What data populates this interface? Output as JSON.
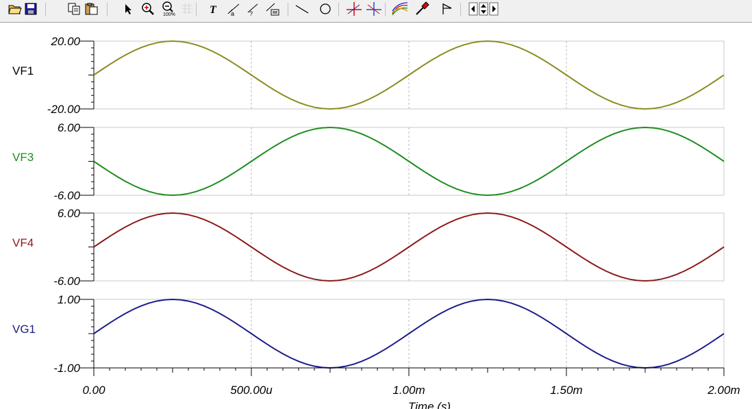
{
  "toolbar": {
    "buttons": [
      {
        "name": "open-file-icon",
        "label": "Open"
      },
      {
        "name": "save-file-icon",
        "label": "Save"
      },
      {
        "name": "copy-icon",
        "label": "Copy"
      },
      {
        "name": "paste-icon",
        "label": "Paste"
      },
      {
        "name": "pointer-icon",
        "label": "Select"
      },
      {
        "name": "zoom-in-icon",
        "label": "Zoom in"
      },
      {
        "name": "zoom-100-icon",
        "label": "Zoom 100%"
      },
      {
        "name": "grid-icon",
        "label": "Grid"
      },
      {
        "name": "text-tool-icon",
        "label": "Text"
      },
      {
        "name": "cursor-a-icon",
        "label": "Cursor A"
      },
      {
        "name": "cursor-b-icon",
        "label": "Cursor B"
      },
      {
        "name": "cursor-table-icon",
        "label": "Cursor table"
      },
      {
        "name": "line-tool-icon",
        "label": "Line"
      },
      {
        "name": "circle-tool-icon",
        "label": "Circle"
      },
      {
        "name": "crosshair-red-icon",
        "label": "Crosshair A"
      },
      {
        "name": "crosshair-blue-icon",
        "label": "Crosshair B"
      },
      {
        "name": "curves-icon",
        "label": "Curves"
      },
      {
        "name": "probe-icon",
        "label": "Probe"
      },
      {
        "name": "marker-icon",
        "label": "Marker"
      },
      {
        "name": "scroll-left-icon",
        "label": "Scroll left"
      },
      {
        "name": "scroll-updown-icon",
        "label": "Scroll up/down"
      },
      {
        "name": "scroll-right-icon",
        "label": "Scroll right"
      }
    ]
  },
  "chart_data": {
    "type": "line",
    "xlabel": "Time (s)",
    "x_range": [
      0,
      0.002
    ],
    "x_ticks": [
      {
        "value": 0,
        "label": "0.00"
      },
      {
        "value": 0.0005,
        "label": "500.00u"
      },
      {
        "value": 0.001,
        "label": "1.00m"
      },
      {
        "value": 0.0015,
        "label": "1.50m"
      },
      {
        "value": 0.002,
        "label": "2.00m"
      }
    ],
    "grid": "vertical dashed at major x ticks",
    "signal": {
      "frequency_hz": 1000,
      "samples": 81
    },
    "series": [
      {
        "name": "VF1",
        "color": "#8b8b1e",
        "amplitude": 20,
        "phase": "sine",
        "ylim": [
          -20,
          20
        ],
        "y_max_label": "20.00",
        "y_min_label": "-20.00"
      },
      {
        "name": "VF3",
        "color": "#1e8c1e",
        "amplitude": 6,
        "phase": "inverted sine",
        "ylim": [
          -6,
          6
        ],
        "y_max_label": "6.00",
        "y_min_label": "-6.00"
      },
      {
        "name": "VF4",
        "color": "#8b1a1a",
        "amplitude": 6,
        "phase": "sine",
        "ylim": [
          -6,
          6
        ],
        "y_max_label": "6.00",
        "y_min_label": "-6.00"
      },
      {
        "name": "VG1",
        "color": "#1a1a8b",
        "amplitude": 1,
        "phase": "sine",
        "ylim": [
          -1,
          1
        ],
        "y_max_label": "1.00",
        "y_min_label": "-1.00"
      }
    ]
  }
}
